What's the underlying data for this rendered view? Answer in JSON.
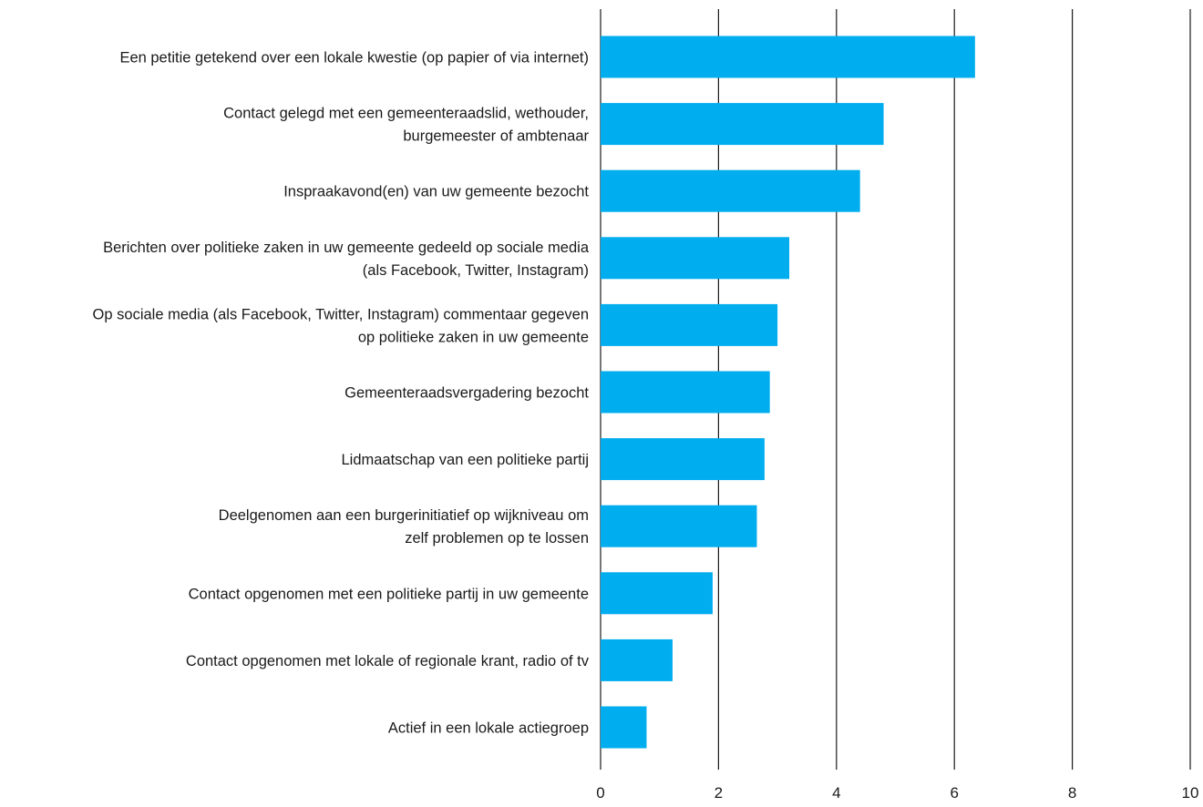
{
  "chart_data": {
    "type": "bar",
    "orientation": "horizontal",
    "categories": [
      [
        "Een petitie getekend over een lokale kwestie (op papier of via internet)"
      ],
      [
        "Contact gelegd met een gemeenteraadslid, wethouder,",
        "burgemeester of ambtenaar"
      ],
      [
        "Inspraakavond(en) van uw gemeente bezocht"
      ],
      [
        "Berichten over politieke zaken in uw gemeente gedeeld op sociale media",
        "(als Facebook, Twitter, Instagram)"
      ],
      [
        "Op sociale media (als Facebook, Twitter, Instagram) commentaar gegeven",
        "op politieke zaken in uw gemeente"
      ],
      [
        "Gemeenteraadsvergadering bezocht"
      ],
      [
        "Lidmaatschap van een politieke partij"
      ],
      [
        "Deelgenomen aan een burgerinitiatief op wijkniveau om",
        "zelf problemen op te lossen"
      ],
      [
        "Contact opgenomen met een politieke partij in uw gemeente"
      ],
      [
        "Contact opgenomen met lokale of regionale krant, radio of tv"
      ],
      [
        "Actief in een lokale actiegroep"
      ]
    ],
    "values": [
      6.35,
      4.8,
      4.4,
      3.2,
      3.0,
      2.87,
      2.78,
      2.65,
      1.9,
      1.22,
      0.78
    ],
    "xlim": [
      0,
      10
    ],
    "xticks": [
      "0",
      "2",
      "4",
      "6",
      "8",
      "10"
    ],
    "grid": true,
    "bar_color": "#00adee"
  }
}
